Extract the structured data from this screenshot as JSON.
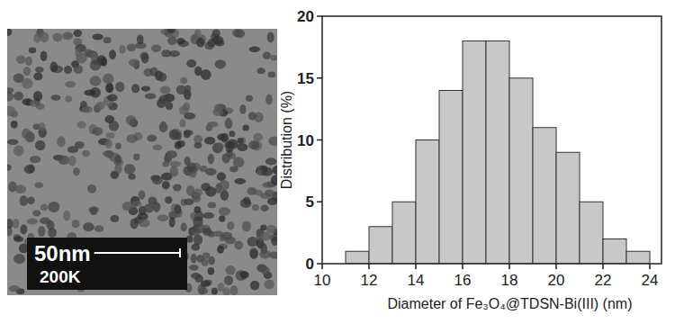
{
  "image": {
    "scale_bar": "50nm",
    "magnification": "200K"
  },
  "chart_data": {
    "type": "histogram",
    "xlabel": "Diameter of Fe₃O₄@TDSN-Bi(III) (nm)",
    "ylabel": "Distribution (%)",
    "bins": [
      11,
      12,
      13,
      14,
      15,
      16,
      17,
      18,
      19,
      20,
      21,
      22,
      23,
      24
    ],
    "values": [
      1,
      3,
      5,
      10,
      14,
      18,
      18,
      15,
      11,
      9,
      5,
      2,
      1
    ],
    "color": "#c8c8c8",
    "xlim": [
      10,
      24.5
    ],
    "xticks": [
      10,
      12,
      14,
      16,
      18,
      20,
      22,
      24
    ],
    "ylim": [
      0,
      20
    ],
    "yticks": [
      0,
      5,
      10,
      15,
      20
    ],
    "grid": false
  }
}
